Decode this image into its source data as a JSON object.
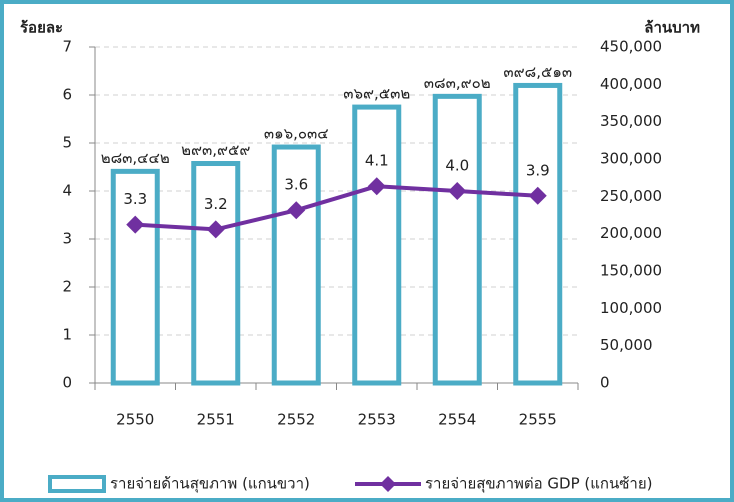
{
  "chart_data": {
    "type": "bar_line",
    "ylabel": "ร้อยละ",
    "y2label": "ล้านบาท",
    "categories": [
      "2550",
      "2551",
      "2552",
      "2553",
      "2554",
      "2555"
    ],
    "series": [
      {
        "name": "รายจ่ายด้านสุขภาพ (แกนขวา)",
        "type": "bar",
        "axis": "y2",
        "color": "#4bacc6",
        "values": [
          283442,
          293959,
          316034,
          369532,
          383902,
          398513
        ],
        "value_labels": [
          "๒๘๓,๔๔๒",
          "๒๙๓,๙๕๙",
          "๓๑๖,๐๓๔",
          "๓๖๙,๕๓๒",
          "๓๘๓,๙๐๒",
          "๓๙๘,๕๑๓"
        ]
      },
      {
        "name": "รายจ่ายสุขภาพต่อ GDP (แกนซ้าย)",
        "type": "line",
        "axis": "y",
        "color": "#7030a0",
        "values": [
          3.3,
          3.2,
          3.6,
          4.1,
          4.0,
          3.9
        ],
        "value_labels": [
          "3.3",
          "3.2",
          "3.6",
          "4.1",
          "4.0",
          "3.9"
        ]
      }
    ],
    "ylim": [
      0,
      7
    ],
    "yticks": [
      0,
      1,
      2,
      3,
      4,
      5,
      6,
      7
    ],
    "y2lim": [
      0,
      450000
    ],
    "y2ticks": [
      0,
      {
        "value": 50000,
        "label": "50,000"
      },
      {
        "value": 100000,
        "label": "100,000"
      },
      {
        "value": 150000,
        "label": "150,000"
      },
      {
        "value": 200000,
        "label": "200,000"
      },
      {
        "value": 250000,
        "label": "250,000"
      },
      {
        "value": 300000,
        "label": "300,000"
      },
      {
        "value": 350000,
        "label": "350,000"
      },
      {
        "value": 400000,
        "label": "400,000"
      },
      {
        "value": 450000,
        "label": "450,000"
      }
    ],
    "grid": true,
    "legend": "bottom"
  }
}
